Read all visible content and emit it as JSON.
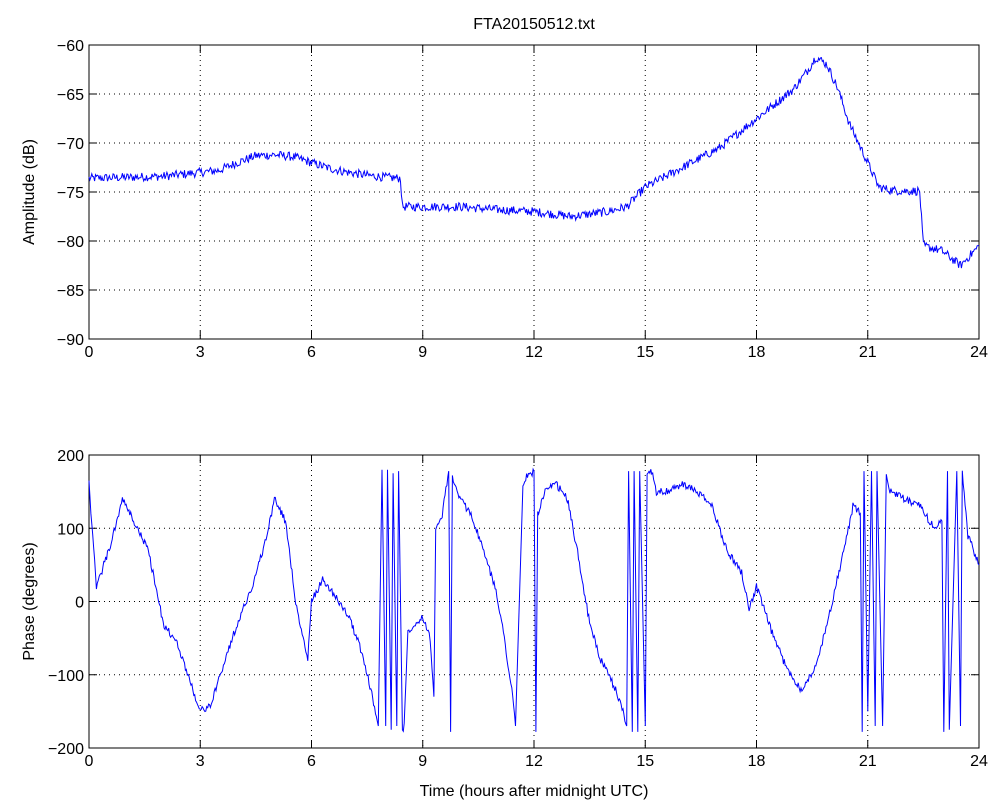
{
  "window": {
    "title": "FTA20150512.txt"
  },
  "chart_data": [
    {
      "type": "line",
      "title": "FTA20150512.txt",
      "xlabel": "",
      "ylabel": "Amplitude (dB)",
      "xlim": [
        0,
        24
      ],
      "ylim": [
        -90,
        -60
      ],
      "xticks": [
        "0",
        "3",
        "6",
        "9",
        "12",
        "15",
        "18",
        "21",
        "24"
      ],
      "yticks": [
        "−90",
        "−85",
        "−80",
        "−75",
        "−70",
        "−65",
        "−60"
      ],
      "grid": true,
      "color": "#0000ff",
      "series": [
        {
          "x": [
            0,
            1,
            2,
            3,
            3.5,
            4,
            4.5,
            5,
            5.5,
            6,
            6.5,
            7,
            7.5,
            8,
            8.4,
            8.45,
            9,
            10,
            11,
            12,
            13,
            14,
            14.5,
            15,
            15.5,
            16,
            16.5,
            17,
            17.5,
            18,
            18.5,
            19,
            19.4,
            19.6,
            19.9,
            20.2,
            20.5,
            21,
            21.3,
            21.6,
            22,
            22.4,
            22.5,
            23,
            23.5,
            24
          ],
          "y": [
            -73.6,
            -73.5,
            -73.4,
            -73,
            -72.8,
            -72,
            -71.3,
            -71.2,
            -71.4,
            -72,
            -72.6,
            -73,
            -73.3,
            -73.5,
            -73.6,
            -76.5,
            -76.5,
            -76.5,
            -76.8,
            -77,
            -77.5,
            -77,
            -76.5,
            -74.5,
            -73.5,
            -72.5,
            -71.5,
            -70.5,
            -69,
            -67.5,
            -66,
            -64.5,
            -62.5,
            -61.2,
            -62,
            -64.5,
            -68,
            -72,
            -74.5,
            -74.8,
            -74.9,
            -74.9,
            -80.5,
            -81,
            -82.5,
            -80.5
          ]
        }
      ]
    },
    {
      "type": "line",
      "title": "",
      "xlabel": "Time (hours after midnight UTC)",
      "ylabel": "Phase (degrees)",
      "xlim": [
        0,
        24
      ],
      "ylim": [
        -200,
        200
      ],
      "xticks": [
        "0",
        "3",
        "6",
        "9",
        "12",
        "15",
        "18",
        "21",
        "24"
      ],
      "yticks": [
        "−200",
        "−100",
        "0",
        "100",
        "200"
      ],
      "grid": true,
      "color": "#0000ff",
      "series": [
        {
          "x": [
            0,
            0.05,
            0.2,
            0.4,
            0.6,
            0.9,
            1.2,
            1.6,
            2.0,
            2.4,
            2.8,
            3.0,
            3.3,
            3.6,
            4.0,
            4.4,
            4.8,
            5.0,
            5.3,
            5.6,
            5.9,
            6.0,
            6.3,
            6.6,
            7.0,
            7.3,
            7.6,
            7.8,
            7.9,
            8.0,
            8.05,
            8.15,
            8.2,
            8.3,
            8.35,
            8.45,
            8.5,
            8.6,
            9.0,
            9.2,
            9.3,
            9.35,
            9.5,
            9.7,
            9.75,
            9.8,
            10.0,
            10.3,
            10.7,
            11.0,
            11.2,
            11.4,
            11.5,
            11.7,
            11.8,
            12.0,
            12.05,
            12.1,
            12.3,
            12.6,
            12.9,
            13.2,
            13.5,
            13.8,
            14.0,
            14.2,
            14.4,
            14.5,
            14.55,
            14.65,
            14.7,
            14.8,
            14.85,
            15.0,
            15.05,
            15.2,
            15.3,
            15.6,
            16.0,
            16.4,
            16.8,
            17.2,
            17.6,
            17.8,
            18.0,
            18.4,
            18.8,
            19.2,
            19.6,
            20.0,
            20.4,
            20.6,
            20.8,
            20.85,
            20.9,
            21.0,
            21.1,
            21.2,
            21.25,
            21.4,
            21.5,
            21.6,
            22.0,
            22.4,
            22.8,
            23.0,
            23.05,
            23.15,
            23.2,
            23.4,
            23.5,
            23.55,
            23.7,
            24.0
          ],
          "y": [
            170,
            120,
            20,
            50,
            80,
            140,
            110,
            70,
            -30,
            -60,
            -120,
            -150,
            -140,
            -90,
            -30,
            20,
            90,
            140,
            110,
            -10,
            -80,
            0,
            30,
            10,
            -20,
            -60,
            -120,
            -170,
            180,
            -170,
            180,
            -175,
            175,
            -170,
            178,
            -175,
            -170,
            -40,
            -20,
            -50,
            -130,
            100,
            110,
            178,
            -178,
            170,
            140,
            120,
            60,
            10,
            -50,
            -120,
            -170,
            160,
            170,
            178,
            -178,
            120,
            150,
            160,
            140,
            60,
            -30,
            -80,
            -100,
            -120,
            -150,
            -170,
            178,
            -178,
            178,
            -178,
            178,
            -170,
            175,
            178,
            150,
            150,
            160,
            150,
            130,
            70,
            40,
            -10,
            20,
            -40,
            -90,
            -120,
            -90,
            -10,
            80,
            130,
            120,
            -178,
            178,
            -150,
            178,
            -170,
            178,
            -170,
            178,
            150,
            140,
            130,
            100,
            110,
            -178,
            178,
            -175,
            178,
            -170,
            178,
            90,
            50
          ]
        }
      ]
    }
  ]
}
